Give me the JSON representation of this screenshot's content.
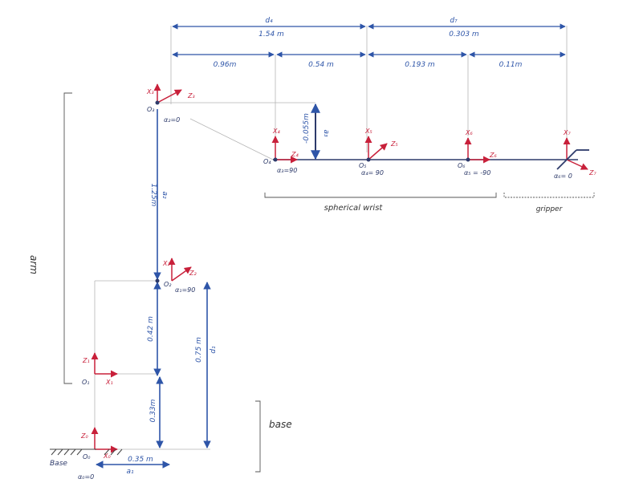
{
  "colors": {
    "dimension": "#2e55a8",
    "frame_axis": "#c8203a",
    "joint": "#2d3a6a",
    "link": "#2e55a8",
    "guide": "#b5b5b5",
    "text_dark": "#333333"
  },
  "dimensions": {
    "d4": "d₄",
    "d4_value": "1.54 m",
    "d7": "d₇",
    "d7_value": "0.303 m",
    "seg1": "0.96m",
    "seg2": "0.54 m",
    "seg3": "0.193 m",
    "seg4": "0.11m",
    "a2_value": "1.25m",
    "a2": "a₂",
    "a3_value": "-0.055m",
    "a3": "a₃",
    "lower_value": "0.42 m",
    "base_value": "0.33m",
    "d1_value": "0.75 m",
    "d1": "d₁",
    "a1_value": "0.35 m",
    "a1": "a₁"
  },
  "frames": {
    "x3": "X₃",
    "z3": "Z₃",
    "o3": "O₃",
    "x4": "X₄",
    "z4": "Z₄",
    "o4": "O₄",
    "x5": "X₅",
    "z5": "Z₅",
    "o5": "O₅",
    "x6": "X₆",
    "z6": "Z₆",
    "o6": "O₆",
    "x7": "X₇",
    "z7": "Z₇",
    "x2": "X₂",
    "z2": "Z₂",
    "o2": "O₂",
    "z1": "Z₁",
    "x1": "X₁",
    "o1": "O₁",
    "z0": "Z₀",
    "x0": "X₀",
    "o0": "O₀"
  },
  "twists": {
    "alpha2": "α₂=0",
    "alpha3": "α₃=90",
    "alpha4": "α₄= 90",
    "alpha5": "α₅ = -90",
    "alpha6": "α₆= 0",
    "alpha1": "α₁=90",
    "alpha0": "α₀=0"
  },
  "groups": {
    "spherical_wrist": "spherical wrist",
    "gripper": "gripper",
    "arm": "arm",
    "base": "base",
    "base_label": "Base"
  }
}
